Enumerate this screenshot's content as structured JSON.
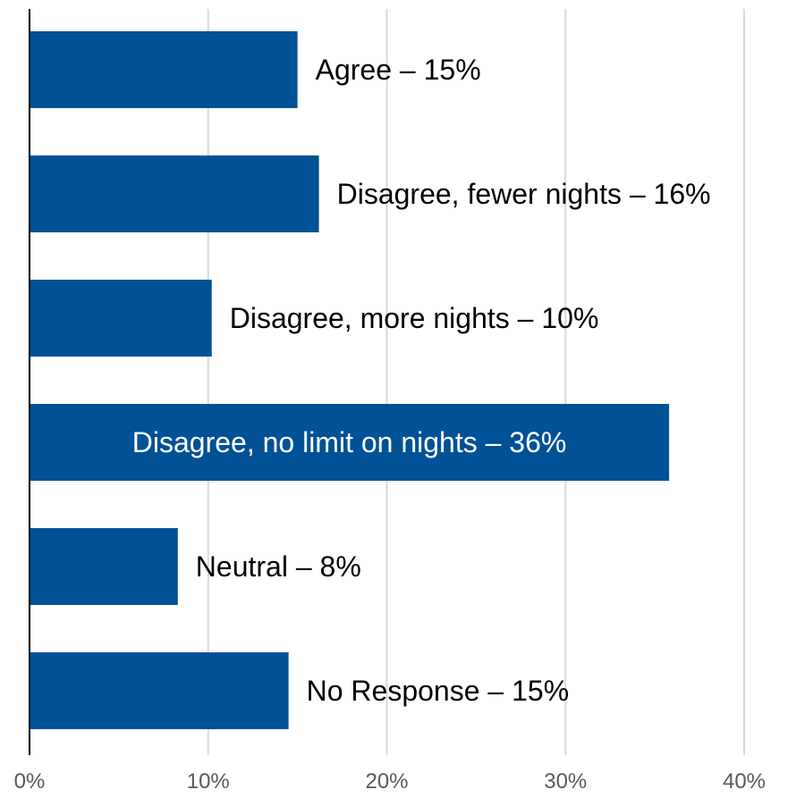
{
  "chart_data": {
    "type": "bar",
    "orientation": "horizontal",
    "categories": [
      "Agree",
      "Disagree, fewer nights",
      "Disagree, more nights",
      "Disagree, no limit on nights",
      "Neutral",
      "No Response"
    ],
    "values": [
      15,
      16.2,
      10.2,
      35.8,
      8.3,
      14.5
    ],
    "data_labels": [
      "Agree – 15%",
      "Disagree, fewer nights – 16%",
      "Disagree, more nights – 10%",
      "Disagree, no limit on nights – 36%",
      "Neutral – 8%",
      "No Response – 15%"
    ],
    "xlim": [
      0,
      40
    ],
    "x_ticks": [
      0,
      10,
      20,
      30,
      40
    ],
    "x_tick_labels": [
      "0%",
      "10%",
      "20%",
      "30%",
      "40%"
    ],
    "grid": "vertical",
    "title": "",
    "xlabel": "",
    "ylabel": ""
  },
  "colors": {
    "bar": "#005195",
    "gridline": "#d9d9d9",
    "axis": "#000000",
    "label_outside": "#000000",
    "label_inside": "#ffffff"
  }
}
